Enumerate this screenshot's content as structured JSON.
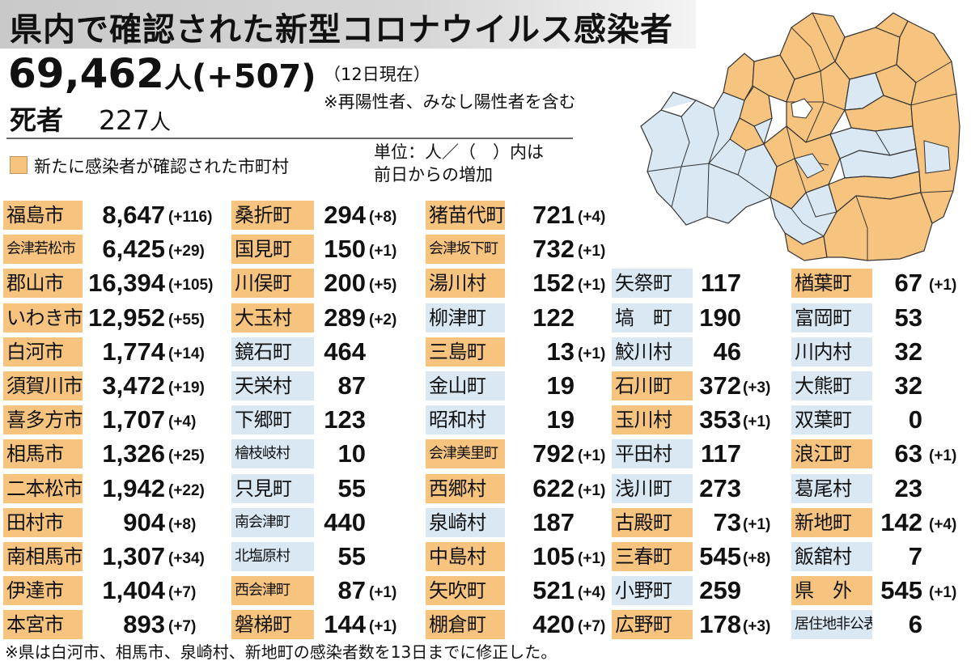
{
  "title": "県内で確認された新型コロナウイルス感染者",
  "total": {
    "count": "69,462",
    "unit": "人",
    "change": "(+507)"
  },
  "date_note": "（12日現在）",
  "inclusion_note": "※再陽性者、みなし陽性者を含む",
  "deaths": {
    "label": "死者",
    "count": "227",
    "unit": "人"
  },
  "legend": {
    "label": "新たに感染者が確認された市町村",
    "color_new": "#f6c47f",
    "color_none": "#d9e8f3"
  },
  "unit_note": [
    "単位：人／（　）内は",
    "前日からの増加"
  ],
  "columns": [
    [
      {
        "name": "福島市",
        "value": "8,647",
        "change": "(+116)",
        "new": true
      },
      {
        "name": "会津若松市",
        "value": "6,425",
        "change": "(+29)",
        "new": true,
        "small": true
      },
      {
        "name": "郡山市",
        "value": "16,394",
        "change": "(+105)",
        "new": true
      },
      {
        "name": "いわき市",
        "value": "12,952",
        "change": "(+55)",
        "new": true
      },
      {
        "name": "白河市",
        "value": "1,774",
        "change": "(+14)",
        "new": true
      },
      {
        "name": "須賀川市",
        "value": "3,472",
        "change": "(+19)",
        "new": true
      },
      {
        "name": "喜多方市",
        "value": "1,707",
        "change": "(+4)",
        "new": true
      },
      {
        "name": "相馬市",
        "value": "1,326",
        "change": "(+25)",
        "new": true
      },
      {
        "name": "二本松市",
        "value": "1,942",
        "change": "(+22)",
        "new": true
      },
      {
        "name": "田村市",
        "value": "904",
        "change": "(+8)",
        "new": true
      },
      {
        "name": "南相馬市",
        "value": "1,307",
        "change": "(+34)",
        "new": true
      },
      {
        "name": "伊達市",
        "value": "1,404",
        "change": "(+7)",
        "new": true
      },
      {
        "name": "本宮市",
        "value": "893",
        "change": "(+7)",
        "new": true
      }
    ],
    [
      {
        "name": "桑折町",
        "value": "294",
        "change": "(+8)",
        "new": true
      },
      {
        "name": "国見町",
        "value": "150",
        "change": "(+1)",
        "new": true
      },
      {
        "name": "川俣町",
        "value": "200",
        "change": "(+5)",
        "new": true
      },
      {
        "name": "大玉村",
        "value": "289",
        "change": "(+2)",
        "new": true
      },
      {
        "name": "鏡石町",
        "value": "464",
        "change": "",
        "new": false
      },
      {
        "name": "天栄村",
        "value": "87",
        "change": "",
        "new": false
      },
      {
        "name": "下郷町",
        "value": "123",
        "change": "",
        "new": false
      },
      {
        "name": "檜枝岐村",
        "value": "10",
        "change": "",
        "new": false,
        "small": true
      },
      {
        "name": "只見町",
        "value": "55",
        "change": "",
        "new": false
      },
      {
        "name": "南会津町",
        "value": "440",
        "change": "",
        "new": false,
        "small": true
      },
      {
        "name": "北塩原村",
        "value": "55",
        "change": "",
        "new": false,
        "small": true
      },
      {
        "name": "西会津町",
        "value": "87",
        "change": "(+1)",
        "new": true,
        "small": true
      },
      {
        "name": "磐梯町",
        "value": "144",
        "change": "(+1)",
        "new": true
      }
    ],
    [
      {
        "name": "猪苗代町",
        "value": "721",
        "change": "(+4)",
        "new": true
      },
      {
        "name": "会津坂下町",
        "value": "732",
        "change": "(+1)",
        "new": true,
        "small": true
      },
      {
        "name": "湯川村",
        "value": "152",
        "change": "(+1)",
        "new": true
      },
      {
        "name": "柳津町",
        "value": "122",
        "change": "",
        "new": false
      },
      {
        "name": "三島町",
        "value": "13",
        "change": "(+1)",
        "new": true
      },
      {
        "name": "金山町",
        "value": "19",
        "change": "",
        "new": false
      },
      {
        "name": "昭和村",
        "value": "19",
        "change": "",
        "new": false
      },
      {
        "name": "会津美里町",
        "value": "792",
        "change": "(+1)",
        "new": true,
        "small": true
      },
      {
        "name": "西郷村",
        "value": "622",
        "change": "(+1)",
        "new": true
      },
      {
        "name": "泉崎村",
        "value": "187",
        "change": "",
        "new": false
      },
      {
        "name": "中島村",
        "value": "105",
        "change": "(+1)",
        "new": true
      },
      {
        "name": "矢吹町",
        "value": "521",
        "change": "(+4)",
        "new": true
      },
      {
        "name": "棚倉町",
        "value": "420",
        "change": "(+7)",
        "new": true
      }
    ],
    [
      {
        "name": "矢祭町",
        "value": "117",
        "change": "",
        "new": false
      },
      {
        "name": "塙　町",
        "value": "190",
        "change": "",
        "new": false
      },
      {
        "name": "鮫川村",
        "value": "46",
        "change": "",
        "new": false
      },
      {
        "name": "石川町",
        "value": "372",
        "change": "(+3)",
        "new": true
      },
      {
        "name": "玉川村",
        "value": "353",
        "change": "(+1)",
        "new": true
      },
      {
        "name": "平田村",
        "value": "117",
        "change": "",
        "new": false
      },
      {
        "name": "浅川町",
        "value": "273",
        "change": "",
        "new": false
      },
      {
        "name": "古殿町",
        "value": "73",
        "change": "(+1)",
        "new": true
      },
      {
        "name": "三春町",
        "value": "545",
        "change": "(+8)",
        "new": true
      },
      {
        "name": "小野町",
        "value": "259",
        "change": "",
        "new": false
      },
      {
        "name": "広野町",
        "value": "178",
        "change": "(+3)",
        "new": true
      }
    ],
    [
      {
        "name": "楢葉町",
        "value": "67",
        "change": "(+1)",
        "new": true
      },
      {
        "name": "富岡町",
        "value": "53",
        "change": "",
        "new": false
      },
      {
        "name": "川内村",
        "value": "32",
        "change": "",
        "new": false
      },
      {
        "name": "大熊町",
        "value": "32",
        "change": "",
        "new": false
      },
      {
        "name": "双葉町",
        "value": "0",
        "change": "",
        "new": false
      },
      {
        "name": "浪江町",
        "value": "63",
        "change": "(+1)",
        "new": true
      },
      {
        "name": "葛尾村",
        "value": "23",
        "change": "",
        "new": false
      },
      {
        "name": "新地町",
        "value": "142",
        "change": "(+4)",
        "new": true
      },
      {
        "name": "飯舘村",
        "value": "7",
        "change": "",
        "new": false
      },
      {
        "name": "県　外",
        "value": "545",
        "change": "(+1)",
        "new": true
      },
      {
        "name": "居住地非公表",
        "value": "6",
        "change": "",
        "new": false,
        "small": true
      }
    ]
  ],
  "footnote": "※県は白河市、相馬市、泉崎村、新地町の感染者数を13日までに修正した。"
}
